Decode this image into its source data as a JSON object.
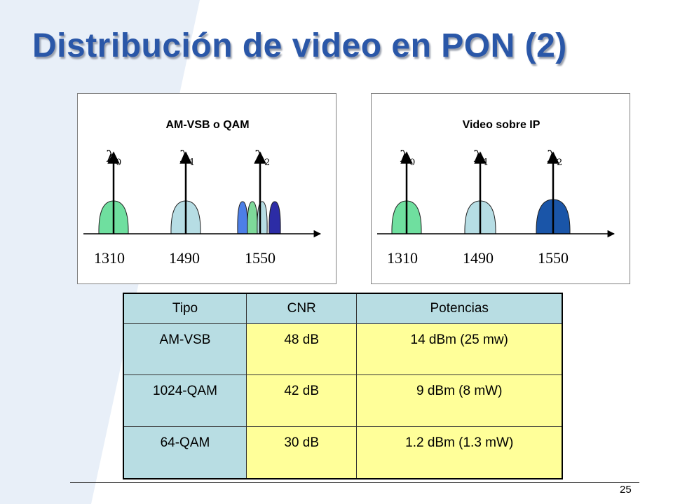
{
  "title": "Distribución de video en PON (2)",
  "slide_number": "25",
  "colors": {
    "title": "#2a57a8",
    "bg_shape": "#e8eff8",
    "lambda0_fill": "#6fdf9f",
    "lambda1_fill": "#b6dde4",
    "qam_fills": [
      "#4d7fe6",
      "#7ed99a",
      "#b6dde4",
      "#2c2ca6"
    ],
    "ip_fill": "#1a55a8",
    "table_header": "#b8dde3",
    "table_cell": "#ffff99"
  },
  "panels": [
    {
      "title": "AM-VSB o QAM",
      "lambdas": [
        {
          "symbol": "λ",
          "sub": "0"
        },
        {
          "symbol": "λ",
          "sub": "1"
        },
        {
          "symbol": "λ",
          "sub": "2"
        }
      ],
      "wavelengths": [
        "1310",
        "1490",
        "1550"
      ]
    },
    {
      "title": "Video sobre IP",
      "lambdas": [
        {
          "symbol": "λ",
          "sub": "0"
        },
        {
          "symbol": "λ",
          "sub": "1"
        },
        {
          "symbol": "λ",
          "sub": "2"
        }
      ],
      "wavelengths": [
        "1310",
        "1490",
        "1550"
      ]
    }
  ],
  "table": {
    "headers": [
      "Tipo",
      "CNR",
      "Potencias"
    ],
    "rows": [
      [
        "AM-VSB",
        "48 dB",
        "14 dBm (25 mw)"
      ],
      [
        "1024-QAM",
        "42 dB",
        "9 dBm (8 mW)"
      ],
      [
        "64-QAM",
        "30 dB",
        "1.2 dBm (1.3 mW)"
      ]
    ]
  }
}
